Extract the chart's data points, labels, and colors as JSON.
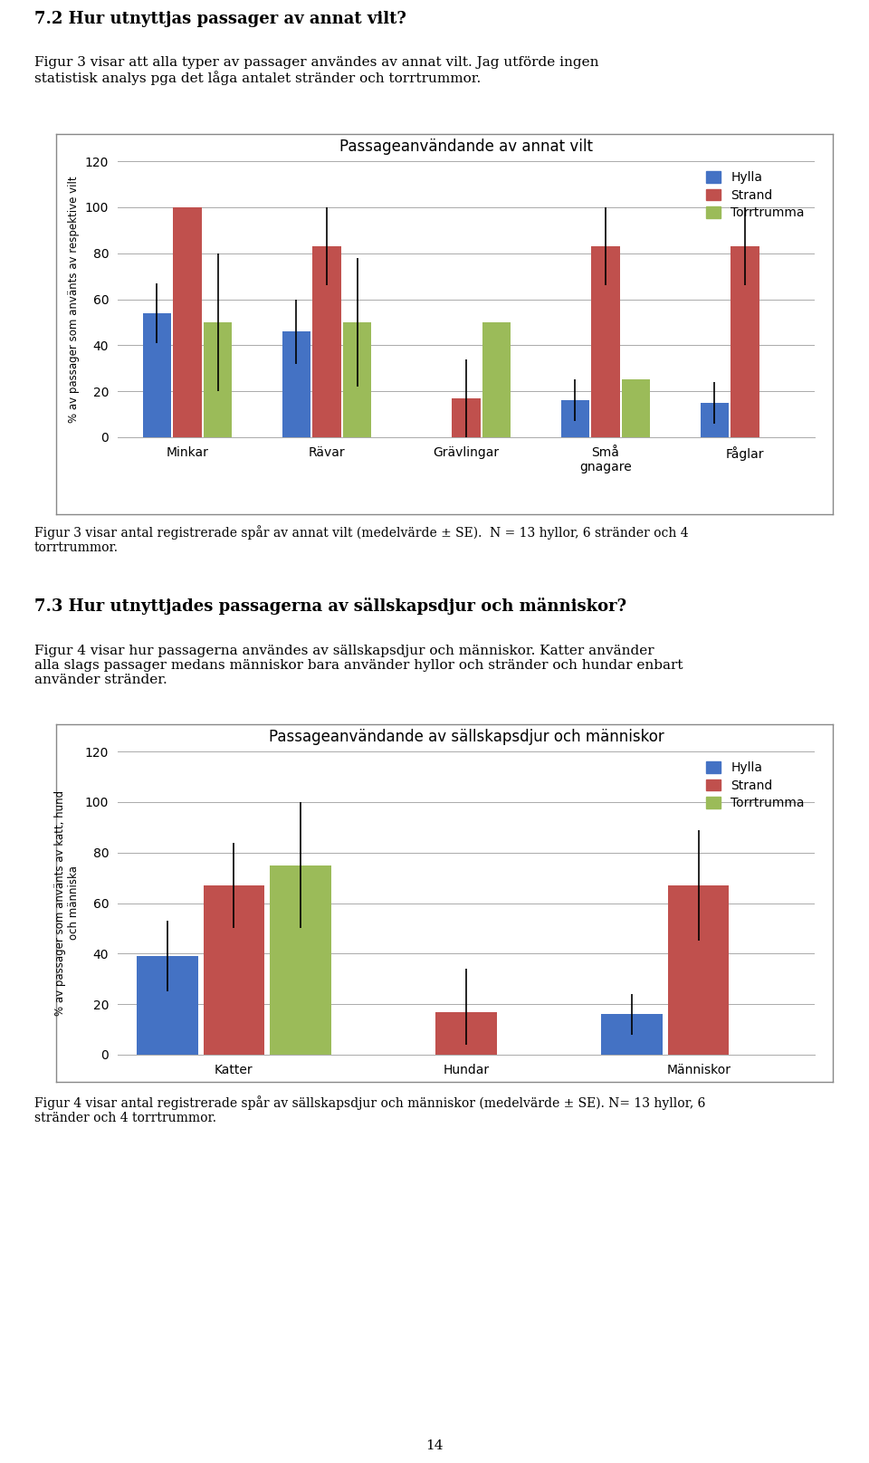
{
  "chart1": {
    "title": "Passageanvändande av annat vilt",
    "ylabel": "% av passager som använts av respektive vilt",
    "categories": [
      "Minkar",
      "Rävar",
      "Grävlingar",
      "Små\ngnagare",
      "Fåglar"
    ],
    "hylla": [
      54,
      46,
      0,
      16,
      15
    ],
    "strand": [
      100,
      83,
      17,
      83,
      83
    ],
    "torrtrumma": [
      50,
      50,
      50,
      25,
      0
    ],
    "hylla_lo": [
      13,
      14,
      0,
      9,
      9
    ],
    "hylla_hi": [
      13,
      14,
      0,
      9,
      9
    ],
    "strand_lo": [
      0,
      17,
      17,
      17,
      17
    ],
    "strand_hi": [
      0,
      17,
      17,
      17,
      17
    ],
    "torrtrumma_lo": [
      30,
      28,
      0,
      0,
      0
    ],
    "torrtrumma_hi": [
      30,
      28,
      0,
      0,
      0
    ],
    "ylim": [
      0,
      120
    ],
    "yticks": [
      0,
      20,
      40,
      60,
      80,
      100,
      120
    ]
  },
  "chart2": {
    "title": "Passageanvändande av sällskapsdjur och människor",
    "ylabel": "% av passager som använts av katt, hund\noch människa",
    "categories": [
      "Katter",
      "Hundar",
      "Människor"
    ],
    "hylla": [
      39,
      0,
      16
    ],
    "strand": [
      67,
      17,
      67
    ],
    "torrtrumma": [
      75,
      0,
      0
    ],
    "hylla_lo": [
      14,
      0,
      8
    ],
    "hylla_hi": [
      14,
      0,
      8
    ],
    "strand_lo": [
      17,
      13,
      22
    ],
    "strand_hi": [
      17,
      17,
      22
    ],
    "torrtrumma_lo": [
      25,
      0,
      0
    ],
    "torrtrumma_hi": [
      25,
      0,
      0
    ],
    "ylim": [
      0,
      120
    ],
    "yticks": [
      0,
      20,
      40,
      60,
      80,
      100,
      120
    ]
  },
  "colors": {
    "hylla": "#4472C4",
    "strand": "#C0504D",
    "torrtrumma": "#9BBB59"
  },
  "bar_width": 0.22,
  "page_number": "14",
  "heading1": "7.2 Hur utnyttjas passager av annat vilt?",
  "para1": "Figur 3 visar att alla typer av passager användes av annat vilt. Jag utförde ingen\nstatistisk analys pga det låga antalet stränder och torrtrummor.",
  "caption1": "Figur 3 visar antal registrerade spår av annat vilt (medelvärde ± SE).  N = 13 hyllor, 6 stränder och 4\ntorrtrummor.",
  "heading2": "7.3 Hur utnyttjades passagerna av sällskapsdjur och människor?",
  "para2": "Figur 4 visar hur passagerna användes av sällskapsdjur och människor. Katter använder\nalla slags passager medans människor bara använder hyllor och stränder och hundar enbart\nanvänder stränder.",
  "caption2": "Figur 4 visar antal registrerade spår av sällskapsdjur och människor (medelvärde ± SE). N= 13 hyllor, 6\nstränder och 4 torrtrummor."
}
